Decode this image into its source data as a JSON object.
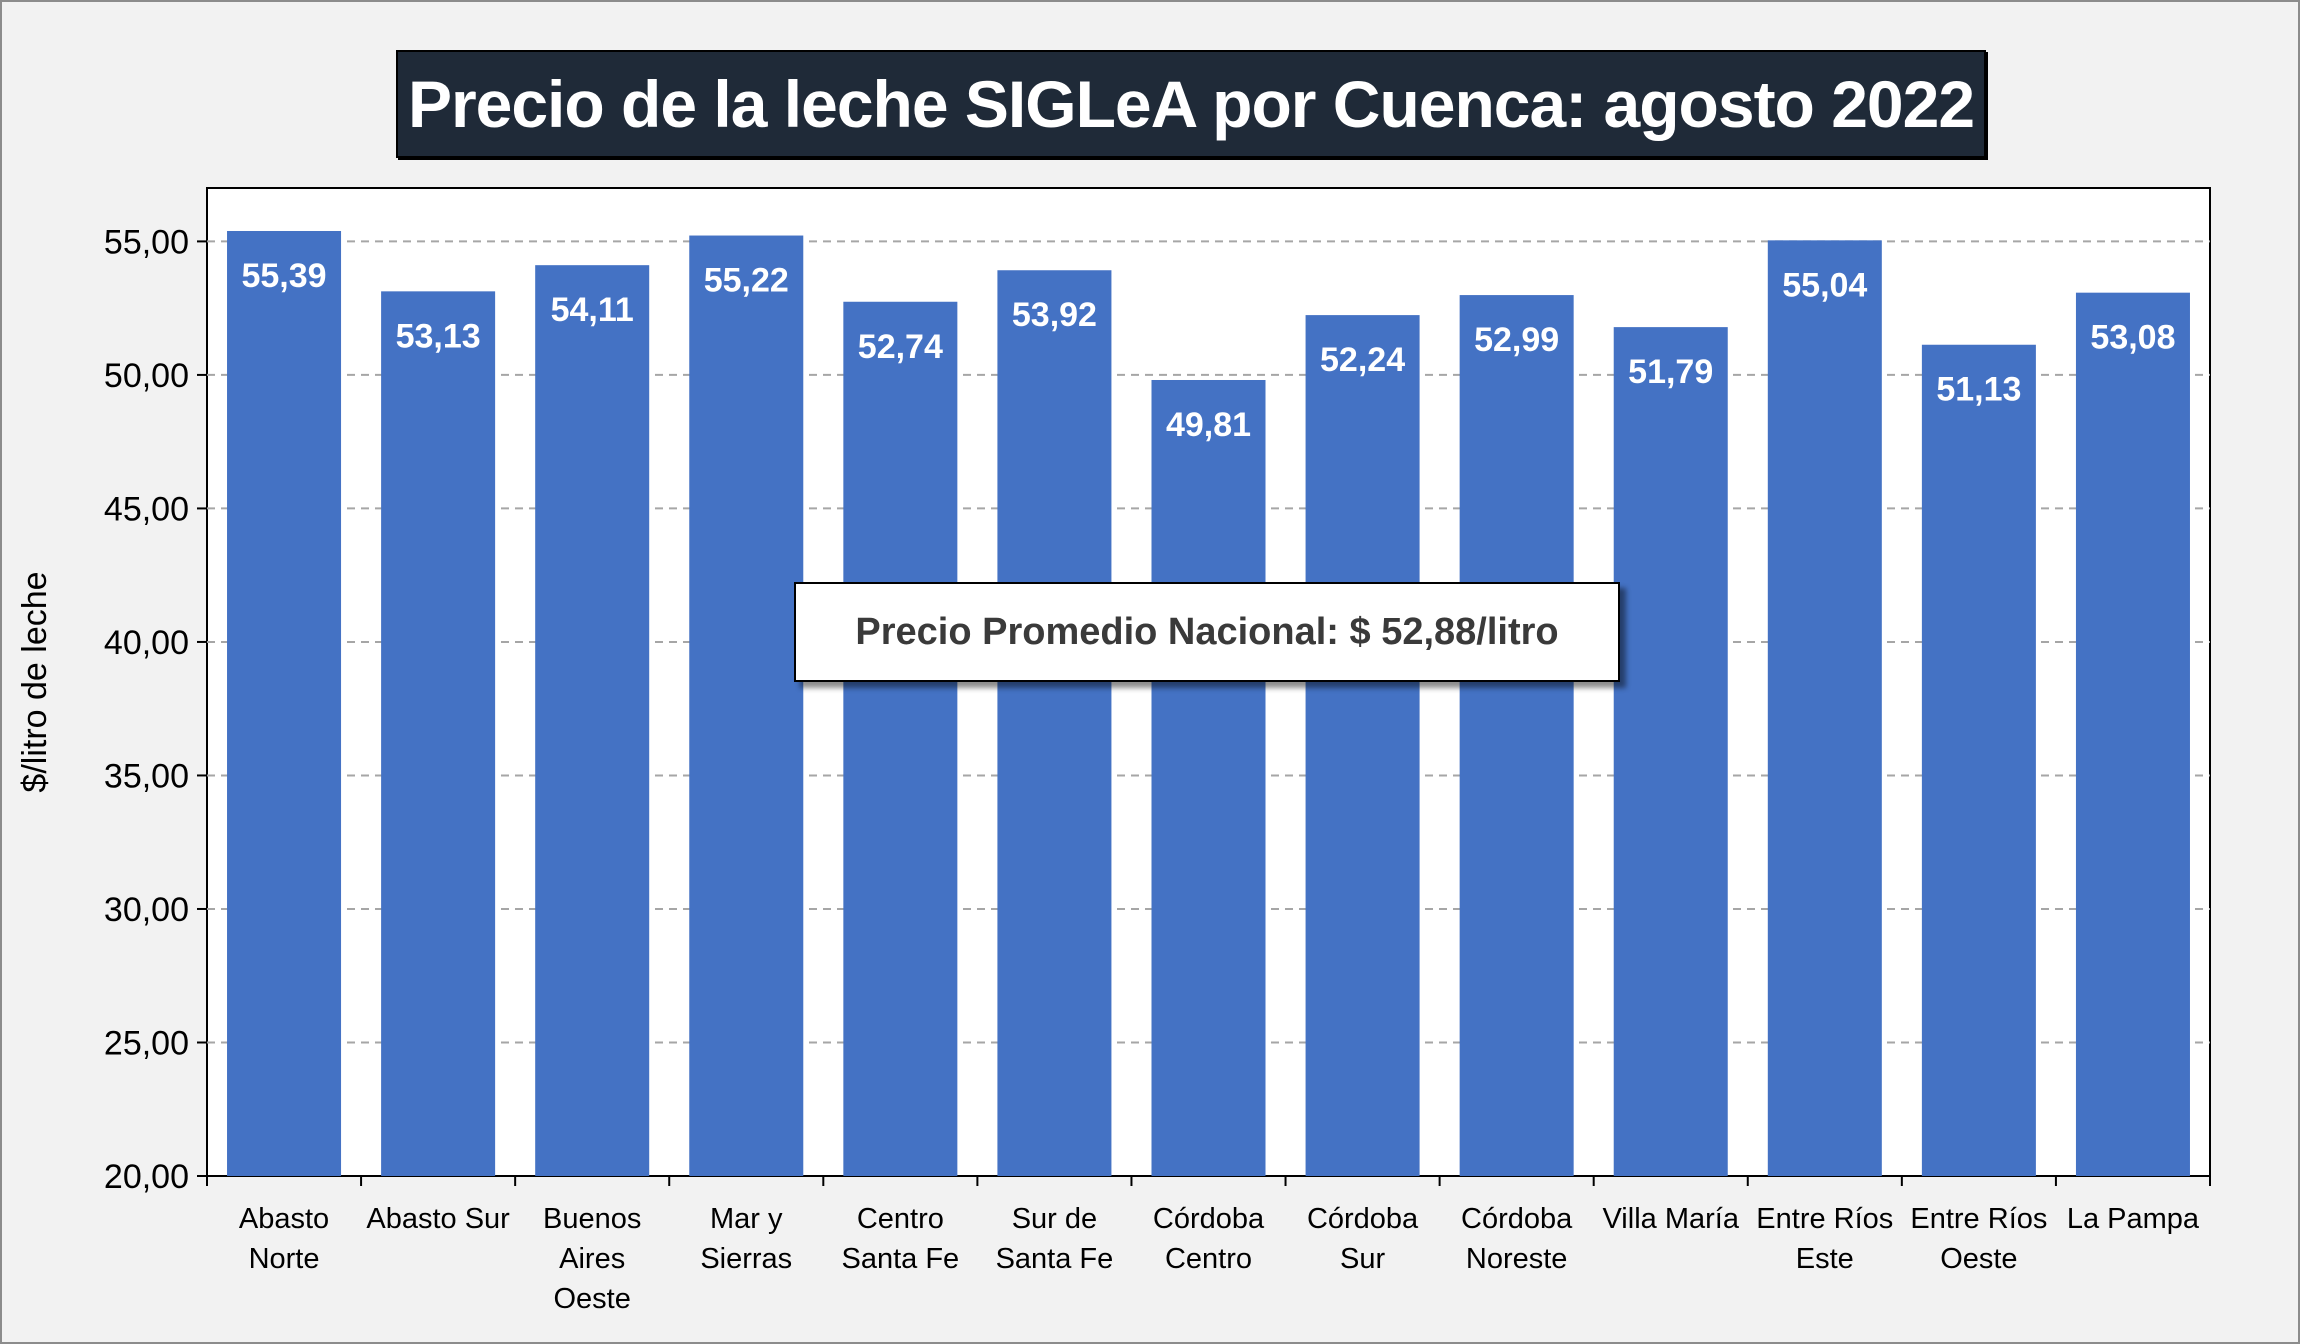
{
  "title": "Precio de la leche SIGLeA por Cuenca: agosto 2022",
  "annotation": "Precio Promedio Nacional: $ 52,88/litro",
  "colors": {
    "bar": "#4472c4",
    "title_bg": "#1f2a38",
    "frame_bg": "#f2f2f2"
  },
  "chart_data": {
    "type": "bar",
    "title": "Precio de la leche SIGLeA por Cuenca: agosto 2022",
    "xlabel": "",
    "ylabel": "$/litro de leche",
    "ylim": [
      20,
      57
    ],
    "yticks": [
      20,
      25,
      30,
      35,
      40,
      45,
      50,
      55
    ],
    "ytick_labels": [
      "20,00",
      "25,00",
      "30,00",
      "35,00",
      "40,00",
      "45,00",
      "50,00",
      "55,00"
    ],
    "grid": true,
    "categories": [
      [
        "Abasto",
        "Norte"
      ],
      [
        "Abasto Sur"
      ],
      [
        "Buenos",
        "Aires",
        "Oeste"
      ],
      [
        "Mar y",
        "Sierras"
      ],
      [
        "Centro",
        "Santa Fe"
      ],
      [
        "Sur de",
        "Santa Fe"
      ],
      [
        "Córdoba",
        "Centro"
      ],
      [
        "Córdoba",
        "Sur"
      ],
      [
        "Córdoba",
        "Noreste"
      ],
      [
        "Villa María"
      ],
      [
        "Entre Ríos",
        "Este"
      ],
      [
        "Entre Ríos",
        "Oeste"
      ],
      [
        "La Pampa"
      ]
    ],
    "values": [
      55.39,
      53.13,
      54.11,
      55.22,
      52.74,
      53.92,
      49.81,
      52.24,
      52.99,
      51.79,
      55.04,
      51.13,
      53.08
    ],
    "value_labels": [
      "55,39",
      "53,13",
      "54,11",
      "55,22",
      "52,74",
      "53,92",
      "49,81",
      "52,24",
      "52,99",
      "51,79",
      "55,04",
      "51,13",
      "53,08"
    ]
  }
}
